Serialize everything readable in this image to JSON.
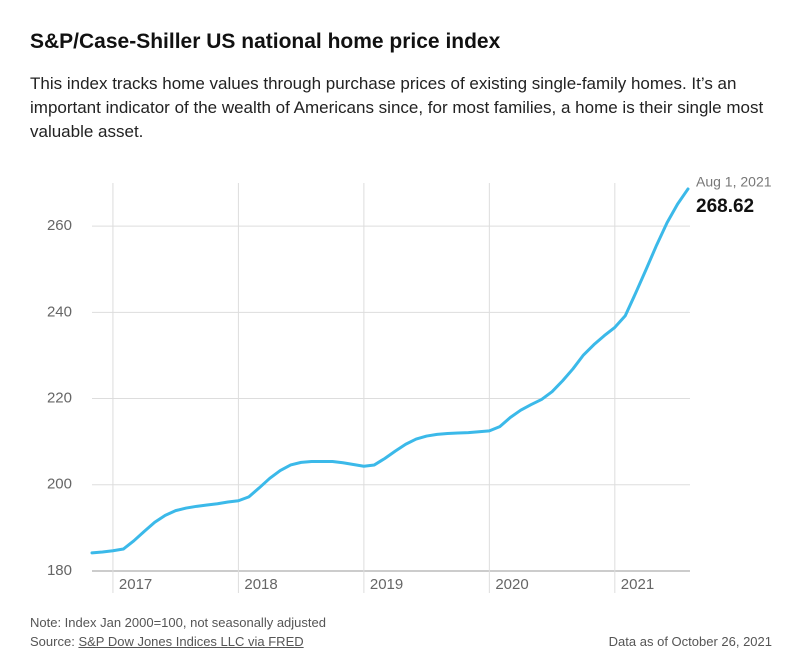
{
  "chart_data": {
    "type": "line",
    "title": "S&P/Case-Shiller US national home price index",
    "subtitle": "This index tracks home values through purchase prices of existing single-family homes. It’s an important indicator of the wealth of Americans since, for most families, a home is their single most valuable asset.",
    "note": "Note: Index Jan 2000=100, not seasonally adjusted",
    "source_label": "Source:",
    "source_link": "S&P Dow Jones Indices LLC via FRED",
    "data_date": "Data as of October 26, 2021",
    "annotation": "Aug 1, 2021",
    "x": [
      2016.8333,
      2016.9167,
      2017.0,
      2017.0833,
      2017.1667,
      2017.25,
      2017.3333,
      2017.4167,
      2017.5,
      2017.5833,
      2017.6667,
      2017.75,
      2017.8333,
      2017.9167,
      2018.0,
      2018.0833,
      2018.1667,
      2018.25,
      2018.3333,
      2018.4167,
      2018.5,
      2018.5833,
      2018.6667,
      2018.75,
      2018.8333,
      2018.9167,
      2019.0,
      2019.0833,
      2019.1667,
      2019.25,
      2019.3333,
      2019.4167,
      2019.5,
      2019.5833,
      2019.6667,
      2019.75,
      2019.8333,
      2019.9167,
      2020.0,
      2020.0833,
      2020.1667,
      2020.25,
      2020.3333,
      2020.4167,
      2020.5,
      2020.5833,
      2020.6667,
      2020.75,
      2020.8333,
      2020.9167,
      2021.0,
      2021.0833,
      2021.1667,
      2021.25,
      2021.3333,
      2021.4167,
      2021.5,
      2021.5833
    ],
    "series": [
      {
        "color": "#3bb9e9",
        "values": [
          184.2,
          184.4,
          184.7,
          185.1,
          187.0,
          189.2,
          191.3,
          192.9,
          194.0,
          194.6,
          195.0,
          195.3,
          195.6,
          196.0,
          196.3,
          197.2,
          199.3,
          201.5,
          203.3,
          204.6,
          205.2,
          205.4,
          205.4,
          205.4,
          205.1,
          204.7,
          204.3,
          204.6,
          206.1,
          207.8,
          209.4,
          210.6,
          211.3,
          211.7,
          211.9,
          212.0,
          212.1,
          212.3,
          212.5,
          213.5,
          215.6,
          217.3,
          218.6,
          219.8,
          221.6,
          224.1,
          226.9,
          230.1,
          232.5,
          234.6,
          236.5,
          239.2,
          244.5,
          250.0,
          255.6,
          260.8,
          265.1,
          268.62
        ]
      }
    ],
    "xlim": [
      2016.8333,
      2021.5833
    ],
    "xticks": [
      2017,
      2018,
      2019,
      2020,
      2021
    ],
    "ylim": [
      180,
      270
    ],
    "yticks": [
      180,
      200,
      220,
      240,
      260
    ],
    "grid": true
  }
}
